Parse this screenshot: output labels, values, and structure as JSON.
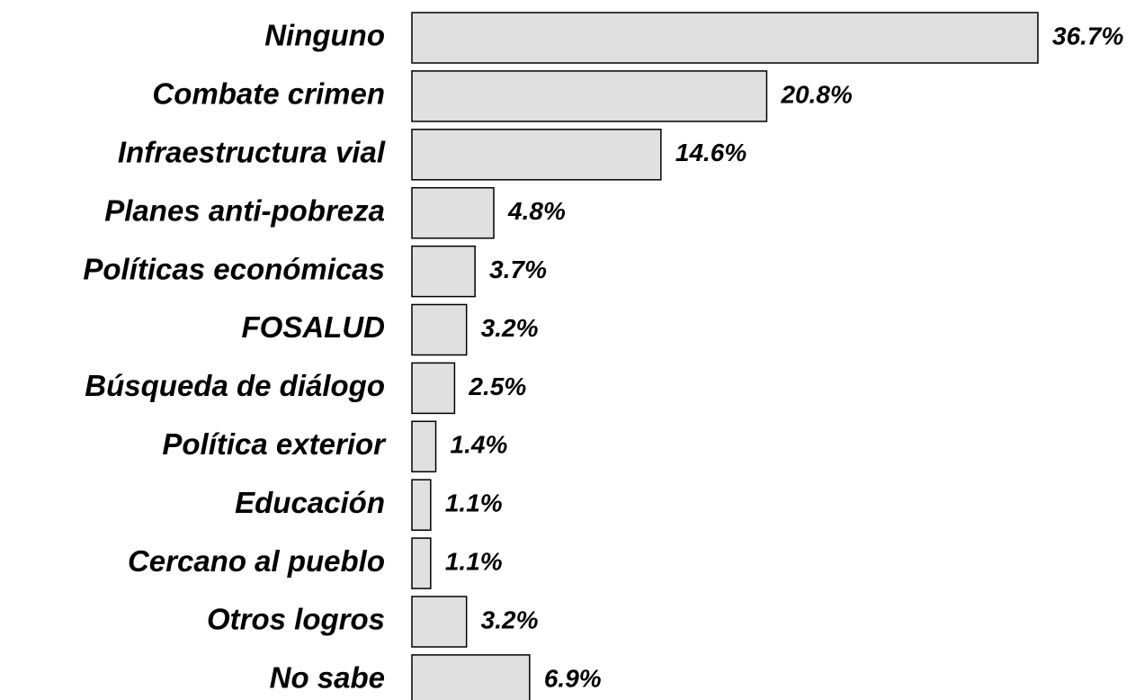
{
  "chart_data": {
    "type": "hbar",
    "categories": [
      "Ninguno",
      "Combate crimen",
      "Infraestructura vial",
      "Planes anti-pobreza",
      "Políticas económicas",
      "FOSALUD",
      "Búsqueda de diálogo",
      "Política exterior",
      "Educación",
      "Cercano al pueblo",
      "Otros logros",
      "No sabe"
    ],
    "values": [
      36.7,
      20.8,
      14.6,
      4.8,
      3.7,
      3.2,
      2.5,
      1.4,
      1.1,
      1.1,
      3.2,
      6.9
    ],
    "value_labels": [
      "36.7%",
      "20.8%",
      "14.6%",
      "4.8%",
      "3.7%",
      "3.2%",
      "2.5%",
      "1.4%",
      "1.1%",
      "1.1%",
      "3.2%",
      "6.9%"
    ],
    "color": "#e0e0e0"
  }
}
